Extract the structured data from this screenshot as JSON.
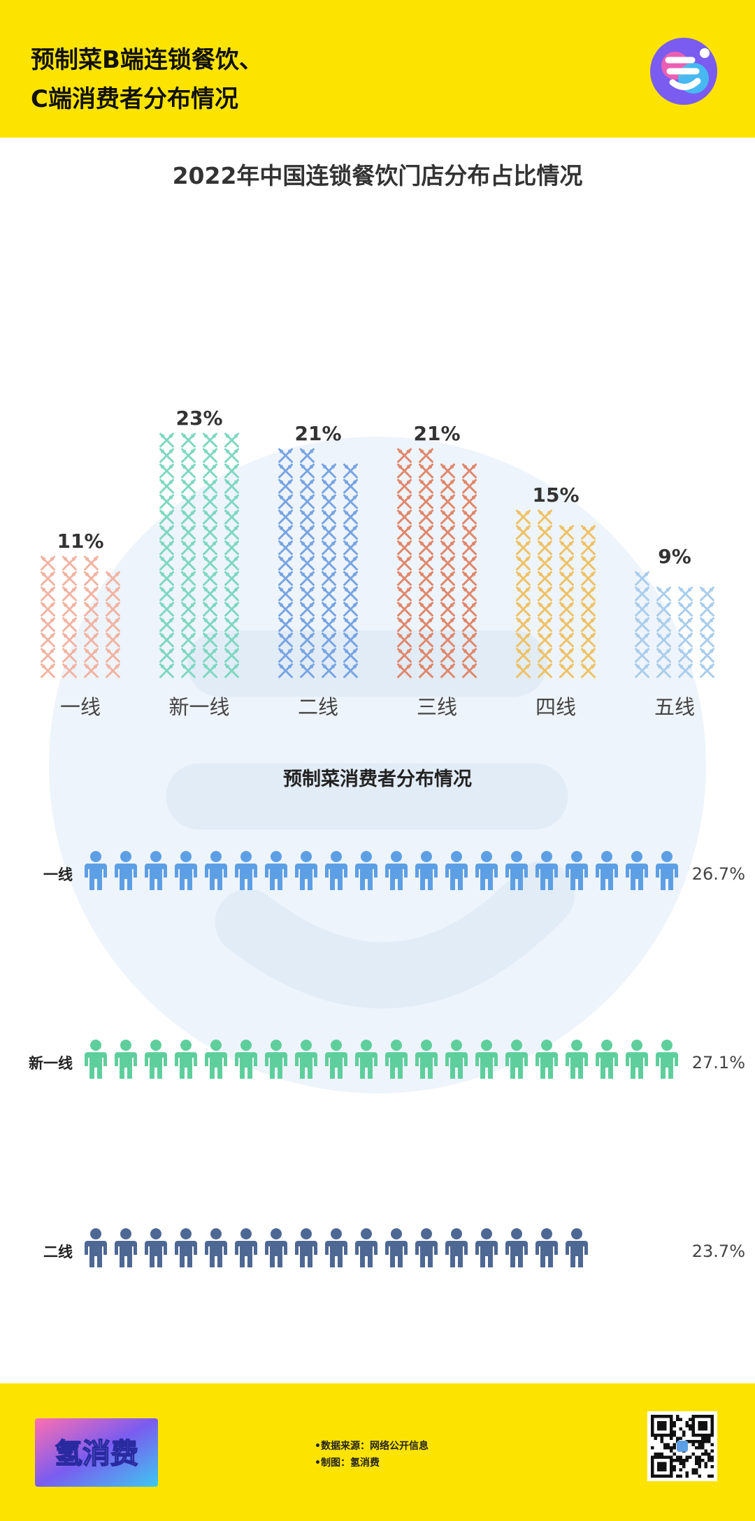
{
  "header": {
    "title_line1": "预制菜B端连锁餐饮、",
    "title_line2": "C端消费者分布情况",
    "logo_icon": "brand-logo-icon"
  },
  "colors": {
    "header_bg": "#fde400",
    "bar_colors": [
      "#f2b3a2",
      "#7dd8c0",
      "#78a4e2",
      "#e0876b",
      "#efc164",
      "#a9cdec"
    ],
    "people_colors": [
      "#5d9fe4",
      "#5ecf9c",
      "#4e6894"
    ]
  },
  "chart_data": [
    {
      "type": "bar",
      "title": "2022年中国连锁餐饮门店分布占比情况",
      "categories": [
        "一线",
        "新一线",
        "二线",
        "三线",
        "四线",
        "五线"
      ],
      "values": [
        11,
        23,
        21,
        21,
        15,
        9
      ],
      "value_labels": [
        "11%",
        "23%",
        "21%",
        "21%",
        "15%",
        "9%"
      ],
      "unit": "%",
      "mark_icon": "fork-knife-icon"
    },
    {
      "type": "bar",
      "title": "预制菜消费者分布情况",
      "categories": [
        "一线",
        "新一线",
        "二线"
      ],
      "values": [
        26.7,
        27.1,
        23.7
      ],
      "value_labels": [
        "26.7%",
        "27.1%",
        "23.7%"
      ],
      "unit": "%",
      "mark_icon": "person-icon"
    }
  ],
  "footer": {
    "logo_text": "氢消费",
    "source_line1": "•数据来源：网络公开信息",
    "source_line2": "•制图：氢消费",
    "qr_icon": "qr-code-icon"
  }
}
